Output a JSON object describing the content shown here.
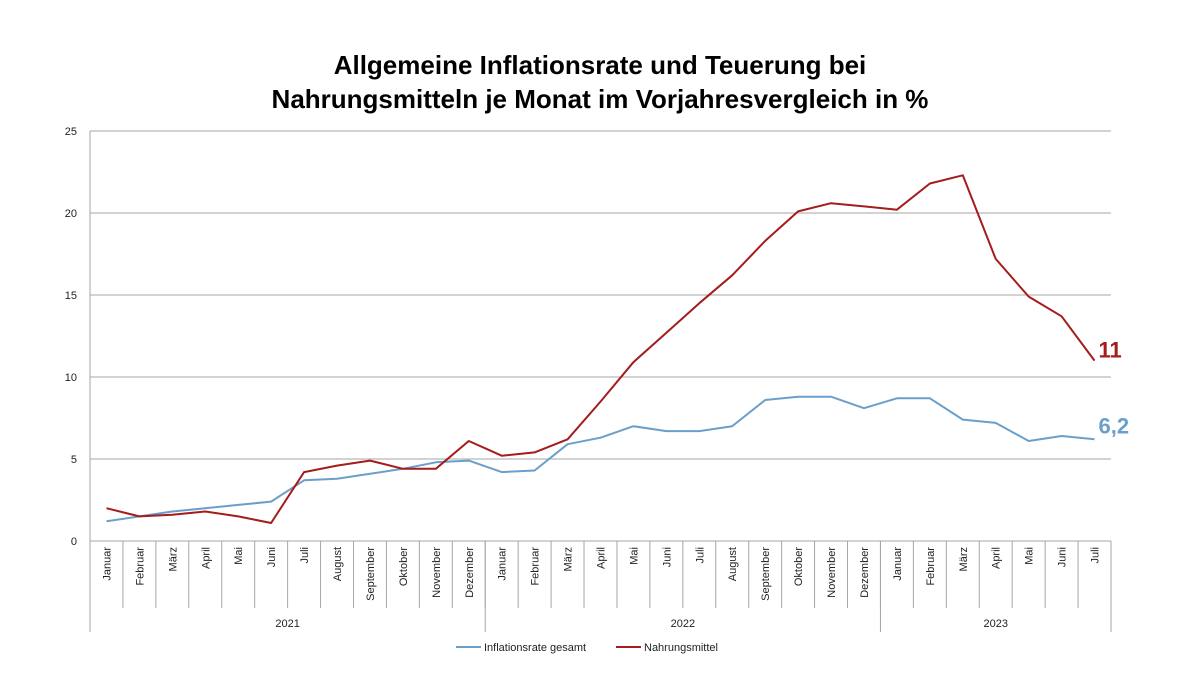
{
  "chart_data": {
    "type": "line",
    "title": [
      "Allgemeine Inflationsrate und Teuerung bei",
      "Nahrungsmitteln je Monat im Vorjahresvergleich in %"
    ],
    "categories": [
      "Januar",
      "Februar",
      "März",
      "April",
      "Mai",
      "Juni",
      "Juli",
      "August",
      "September",
      "Oktober",
      "November",
      "Dezember",
      "Januar",
      "Februar",
      "März",
      "April",
      "Mai",
      "Juni",
      "Juli",
      "August",
      "September",
      "Oktober",
      "November",
      "Dezember",
      "Januar",
      "Februar",
      "März",
      "April",
      "Mai",
      "Juni",
      "Juli"
    ],
    "year_groups": [
      {
        "label": "2021",
        "count": 12
      },
      {
        "label": "2022",
        "count": 12
      },
      {
        "label": "2023",
        "count": 7
      }
    ],
    "ylim": [
      0,
      25
    ],
    "yticks": [
      0,
      5,
      10,
      15,
      20,
      25
    ],
    "grid": true,
    "legend_position": "bottom",
    "series": [
      {
        "name": "Inflationsrate gesamt",
        "color": "#6a9fcb",
        "values": [
          1.2,
          1.5,
          1.8,
          2.0,
          2.2,
          2.4,
          3.7,
          3.8,
          4.1,
          4.4,
          4.8,
          4.9,
          4.2,
          4.3,
          5.9,
          6.3,
          7.0,
          6.7,
          6.7,
          7.0,
          8.6,
          8.8,
          8.8,
          8.1,
          8.7,
          8.7,
          7.4,
          7.2,
          6.1,
          6.4,
          6.2
        ],
        "end_label": "6,2"
      },
      {
        "name": "Nahrungsmittel",
        "color": "#a41c1c",
        "values": [
          2.0,
          1.5,
          1.6,
          1.8,
          1.5,
          1.1,
          4.2,
          4.6,
          4.9,
          4.4,
          4.4,
          6.1,
          5.2,
          5.4,
          6.2,
          8.5,
          10.9,
          12.7,
          14.5,
          16.2,
          18.3,
          20.1,
          20.6,
          20.4,
          20.2,
          21.8,
          22.3,
          17.2,
          14.9,
          13.7,
          11.0
        ],
        "end_label": "11"
      }
    ]
  }
}
